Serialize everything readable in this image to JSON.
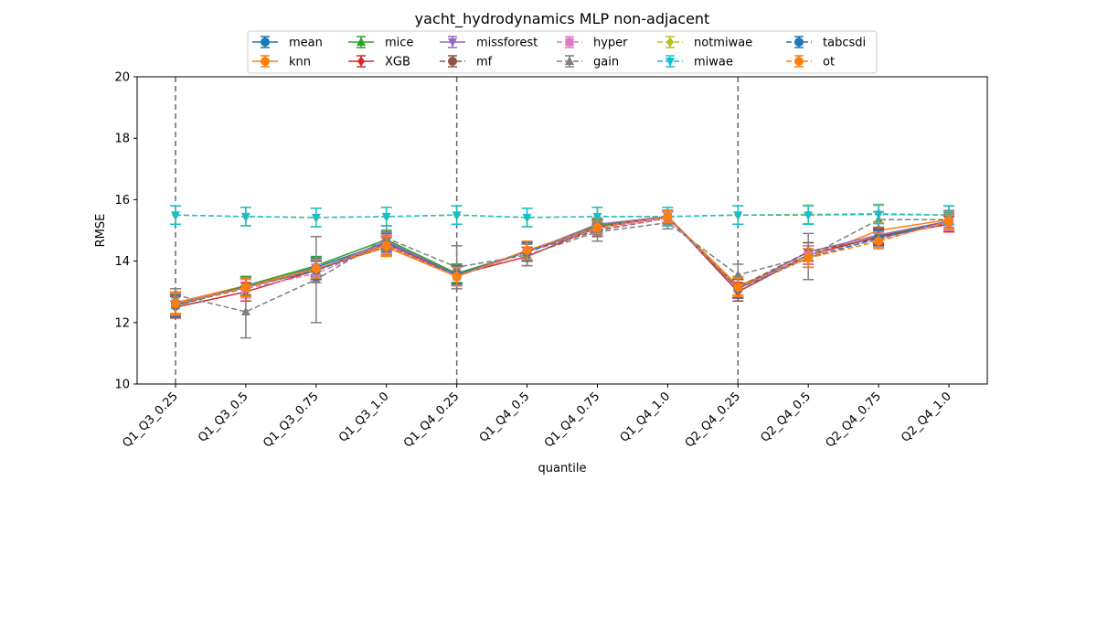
{
  "chart_data": {
    "type": "line",
    "title": "yacht_hydrodynamics MLP non-adjacent",
    "xlabel": "quantile",
    "ylabel": "RMSE",
    "ylim": [
      10,
      20
    ],
    "yticks": [
      10,
      12,
      14,
      16,
      18,
      20
    ],
    "categories": [
      "Q1_Q3_0.25",
      "Q1_Q3_0.5",
      "Q1_Q3_0.75",
      "Q1_Q3_1.0",
      "Q1_Q4_0.25",
      "Q1_Q4_0.5",
      "Q1_Q4_0.75",
      "Q1_Q4_1.0",
      "Q2_Q4_0.25",
      "Q2_Q4_0.5",
      "Q2_Q4_0.75",
      "Q2_Q4_1.0"
    ],
    "vlines_at": [
      "Q1_Q3_0.25",
      "Q1_Q4_0.25",
      "Q2_Q4_0.25"
    ],
    "grid": false,
    "legend_position": "top-center",
    "series": [
      {
        "name": "mean",
        "color": "#1f77b4",
        "marker": "circle",
        "dashed": false,
        "values": [
          12.6,
          13.15,
          13.8,
          14.6,
          13.6,
          14.3,
          15.1,
          15.45,
          13.1,
          14.2,
          14.8,
          15.3
        ],
        "errors": [
          0.35,
          0.3,
          0.3,
          0.3,
          0.3,
          0.3,
          0.2,
          0.2,
          0.3,
          0.3,
          0.25,
          0.25
        ]
      },
      {
        "name": "knn",
        "color": "#ff7f0e",
        "marker": "circle",
        "dashed": false,
        "values": [
          12.65,
          13.2,
          13.75,
          14.45,
          13.5,
          14.35,
          15.1,
          15.45,
          13.2,
          14.1,
          15.0,
          15.35
        ],
        "errors": [
          0.35,
          0.3,
          0.3,
          0.3,
          0.3,
          0.3,
          0.2,
          0.2,
          0.3,
          0.3,
          0.25,
          0.25
        ]
      },
      {
        "name": "mice",
        "color": "#2ca02c",
        "marker": "triangle-up",
        "dashed": false,
        "values": [
          12.55,
          13.2,
          13.85,
          14.7,
          13.6,
          14.3,
          15.15,
          15.45,
          13.1,
          14.2,
          14.8,
          15.3
        ],
        "errors": [
          0.35,
          0.3,
          0.3,
          0.3,
          0.3,
          0.3,
          0.2,
          0.2,
          0.3,
          0.3,
          0.25,
          0.25
        ]
      },
      {
        "name": "XGB",
        "color": "#d62728",
        "marker": "diamond",
        "dashed": false,
        "values": [
          12.5,
          13.0,
          13.7,
          14.55,
          13.55,
          14.15,
          15.1,
          15.45,
          13.0,
          14.2,
          14.8,
          15.2
        ],
        "errors": [
          0.35,
          0.3,
          0.3,
          0.3,
          0.3,
          0.3,
          0.2,
          0.2,
          0.3,
          0.3,
          0.25,
          0.25
        ]
      },
      {
        "name": "missforest",
        "color": "#9467bd",
        "marker": "triangle-down",
        "dashed": false,
        "values": [
          12.6,
          13.15,
          13.7,
          14.65,
          13.55,
          14.3,
          15.2,
          15.45,
          13.1,
          14.3,
          14.85,
          15.3
        ],
        "errors": [
          0.35,
          0.3,
          0.3,
          0.3,
          0.3,
          0.3,
          0.2,
          0.2,
          0.3,
          0.3,
          0.25,
          0.25
        ]
      },
      {
        "name": "mf",
        "color": "#8c564b",
        "marker": "circle",
        "dashed": true,
        "values": [
          12.6,
          13.15,
          13.7,
          14.5,
          13.5,
          14.3,
          15.0,
          15.4,
          13.15,
          14.3,
          14.75,
          15.25
        ],
        "errors": [
          0.35,
          0.3,
          0.3,
          0.3,
          0.3,
          0.3,
          0.2,
          0.2,
          0.3,
          0.3,
          0.25,
          0.25
        ]
      },
      {
        "name": "hyper",
        "color": "#e377c2",
        "marker": "square",
        "dashed": true,
        "values": [
          12.6,
          13.1,
          13.6,
          14.55,
          13.5,
          14.3,
          15.05,
          15.4,
          13.1,
          14.2,
          14.7,
          15.25
        ],
        "errors": [
          0.35,
          0.3,
          0.3,
          0.3,
          0.3,
          0.3,
          0.2,
          0.2,
          0.3,
          0.3,
          0.25,
          0.25
        ]
      },
      {
        "name": "gain",
        "color": "#7f7f7f",
        "marker": "triangle-up",
        "dashed": true,
        "values": [
          12.9,
          12.35,
          13.4,
          14.75,
          13.8,
          14.2,
          14.95,
          15.25,
          13.55,
          14.15,
          15.35,
          15.35
        ],
        "errors": [
          0.2,
          0.85,
          1.4,
          0.4,
          0.7,
          0.35,
          0.3,
          0.2,
          0.35,
          0.75,
          0.25,
          0.3
        ]
      },
      {
        "name": "notmiwae",
        "color": "#bcbd22",
        "marker": "diamond",
        "dashed": true,
        "values": [
          15.5,
          15.45,
          15.42,
          15.45,
          15.5,
          15.42,
          15.45,
          15.45,
          15.5,
          15.52,
          15.55,
          15.5
        ],
        "errors": [
          0.3,
          0.3,
          0.3,
          0.3,
          0.3,
          0.3,
          0.3,
          0.3,
          0.3,
          0.3,
          0.3,
          0.3
        ]
      },
      {
        "name": "miwae",
        "color": "#17becf",
        "marker": "triangle-down",
        "dashed": true,
        "values": [
          15.5,
          15.45,
          15.42,
          15.45,
          15.5,
          15.42,
          15.45,
          15.45,
          15.5,
          15.5,
          15.52,
          15.5
        ],
        "errors": [
          0.3,
          0.3,
          0.3,
          0.3,
          0.3,
          0.3,
          0.3,
          0.3,
          0.3,
          0.3,
          0.3,
          0.3
        ]
      },
      {
        "name": "tabcsdi",
        "color": "#1f77b4",
        "marker": "circle",
        "dashed": true,
        "values": [
          12.55,
          13.15,
          13.7,
          14.5,
          13.55,
          14.3,
          15.1,
          15.45,
          13.1,
          14.1,
          14.75,
          15.3
        ],
        "errors": [
          0.35,
          0.3,
          0.3,
          0.3,
          0.3,
          0.3,
          0.2,
          0.2,
          0.3,
          0.3,
          0.25,
          0.25
        ]
      },
      {
        "name": "ot",
        "color": "#ff7f0e",
        "marker": "circle",
        "dashed": true,
        "values": [
          12.6,
          13.15,
          13.75,
          14.5,
          13.5,
          14.35,
          15.1,
          15.45,
          13.15,
          14.1,
          14.65,
          15.3
        ],
        "errors": [
          0.35,
          0.3,
          0.3,
          0.3,
          0.3,
          0.3,
          0.2,
          0.2,
          0.3,
          0.3,
          0.25,
          0.25
        ]
      }
    ]
  }
}
